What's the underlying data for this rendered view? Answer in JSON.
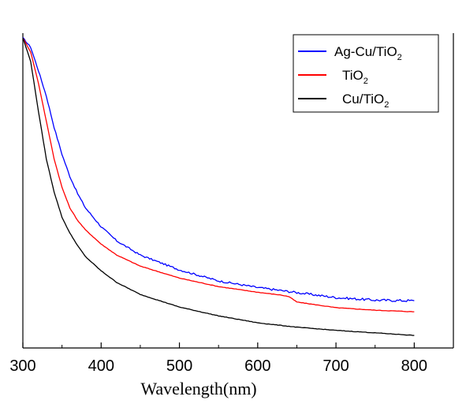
{
  "chart_data": {
    "type": "line",
    "title": "",
    "xlabel": "Wavelength(nm)",
    "ylabel": "",
    "xlim": [
      300,
      850
    ],
    "ylim": [
      0,
      1
    ],
    "x_ticks": [
      "300",
      "400",
      "500",
      "600",
      "700",
      "800"
    ],
    "x_tick_values": [
      300,
      400,
      500,
      600,
      700,
      800
    ],
    "grid": false,
    "legend_position": "top-right",
    "legend": [
      {
        "main": "Ag-Cu/TiO",
        "sub": "2"
      },
      {
        "main": "TiO",
        "sub": "2"
      },
      {
        "main": "Cu/TiO",
        "sub": "2"
      }
    ],
    "series": [
      {
        "name": "Ag-Cu/TiO2",
        "color": "#0000ff",
        "x": [
          300,
          310,
          320,
          330,
          340,
          350,
          360,
          370,
          380,
          400,
          420,
          450,
          500,
          550,
          600,
          650,
          700,
          750,
          800
        ],
        "y": [
          0.985,
          0.955,
          0.88,
          0.8,
          0.7,
          0.615,
          0.545,
          0.49,
          0.445,
          0.385,
          0.34,
          0.295,
          0.248,
          0.213,
          0.192,
          0.176,
          0.16,
          0.152,
          0.15
        ]
      },
      {
        "name": "TiO2",
        "color": "#ff0000",
        "x": [
          300,
          310,
          320,
          330,
          340,
          350,
          360,
          370,
          380,
          400,
          420,
          450,
          500,
          550,
          600,
          630,
          640,
          650,
          700,
          750,
          800
        ],
        "y": [
          0.985,
          0.94,
          0.84,
          0.72,
          0.6,
          0.51,
          0.445,
          0.405,
          0.375,
          0.33,
          0.295,
          0.26,
          0.222,
          0.195,
          0.177,
          0.168,
          0.163,
          0.146,
          0.128,
          0.12,
          0.115
        ]
      },
      {
        "name": "Cu/TiO2",
        "color": "#000000",
        "x": [
          300,
          310,
          320,
          330,
          340,
          350,
          360,
          370,
          380,
          400,
          420,
          450,
          500,
          550,
          600,
          650,
          700,
          750,
          800
        ],
        "y": [
          0.985,
          0.91,
          0.75,
          0.6,
          0.495,
          0.415,
          0.365,
          0.325,
          0.29,
          0.245,
          0.208,
          0.17,
          0.13,
          0.102,
          0.08,
          0.066,
          0.056,
          0.048,
          0.04
        ]
      }
    ]
  }
}
